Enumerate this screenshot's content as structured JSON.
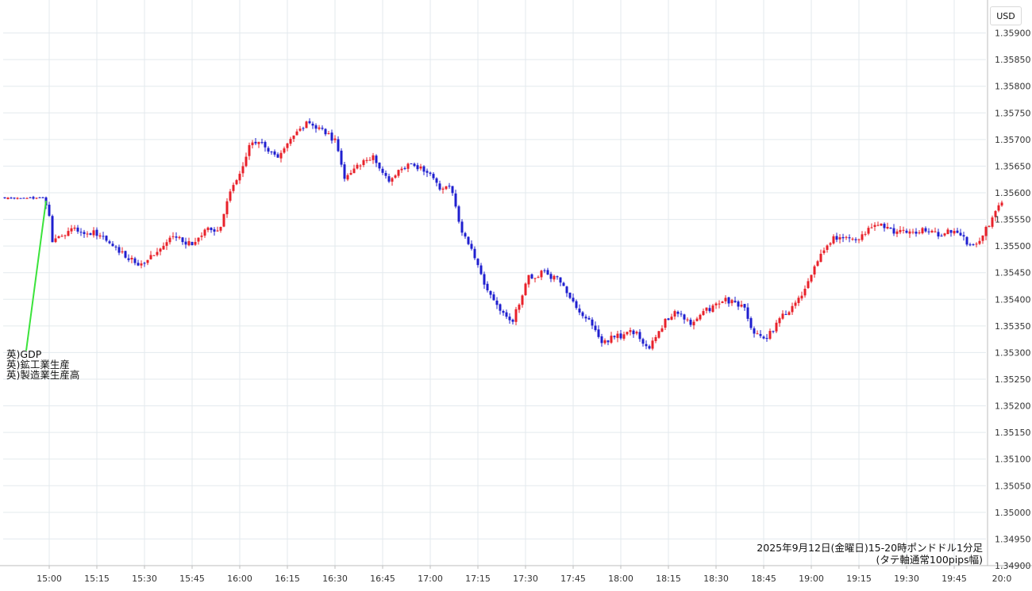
{
  "currency_label": "USD",
  "caption": {
    "line1": "2025年9月12日(金曜日)15-20時ポンドドル1分足",
    "line2": "(タテ軸通常100pips幅)"
  },
  "annotation": {
    "lines": [
      "英)GDP",
      "英)鉱工業生産",
      "英)製造業生産高"
    ],
    "time": "14:59"
  },
  "colors": {
    "up": "#e8212a",
    "down": "#1f1fcf",
    "grid": "#e3eaee",
    "annotation_line": "#3be33b"
  },
  "chart_data": {
    "type": "candlestick",
    "title": "",
    "ylim": [
      1.349,
      1.3595
    ],
    "y_ticks": [
      "1.35900",
      "1.35850",
      "1.35800",
      "1.35750",
      "1.35700",
      "1.35650",
      "1.35600",
      "1.35550",
      "1.35500",
      "1.35450",
      "1.35400",
      "1.35350",
      "1.35300",
      "1.35250",
      "1.35200",
      "1.35150",
      "1.35100",
      "1.35050",
      "1.35000",
      "1.34950",
      "1.34900"
    ],
    "x_range": [
      "14:46",
      "20:00"
    ],
    "x_ticks": [
      "15:00",
      "15:15",
      "15:30",
      "15:45",
      "16:00",
      "16:15",
      "16:30",
      "16:45",
      "17:00",
      "17:15",
      "17:30",
      "17:45",
      "18:00",
      "18:15",
      "18:30",
      "18:45",
      "19:00",
      "19:15",
      "19:30",
      "19:45",
      "20:0"
    ],
    "grid": true,
    "interval_minutes": 1,
    "keypoints": [
      [
        "14:46",
        1.3559
      ],
      [
        "14:58",
        1.3559
      ],
      [
        "15:00",
        1.3556
      ],
      [
        "15:01",
        1.3551
      ],
      [
        "15:04",
        1.3552
      ],
      [
        "15:08",
        1.3553
      ],
      [
        "15:15",
        1.35525
      ],
      [
        "15:22",
        1.3549
      ],
      [
        "15:29",
        1.35465
      ],
      [
        "15:34",
        1.3549
      ],
      [
        "15:39",
        1.35515
      ],
      [
        "15:45",
        1.35505
      ],
      [
        "15:50",
        1.35535
      ],
      [
        "15:54",
        1.3553
      ],
      [
        "15:57",
        1.35605
      ],
      [
        "16:01",
        1.3565
      ],
      [
        "16:03",
        1.35695
      ],
      [
        "16:07",
        1.3569
      ],
      [
        "16:12",
        1.3566
      ],
      [
        "16:17",
        1.3571
      ],
      [
        "16:22",
        1.35735
      ],
      [
        "16:27",
        1.3571
      ],
      [
        "16:30",
        1.357
      ],
      [
        "16:33",
        1.35625
      ],
      [
        "16:37",
        1.3565
      ],
      [
        "16:42",
        1.35665
      ],
      [
        "16:47",
        1.3562
      ],
      [
        "16:51",
        1.3565
      ],
      [
        "16:56",
        1.3565
      ],
      [
        "17:00",
        1.3564
      ],
      [
        "17:03",
        1.35605
      ],
      [
        "17:06",
        1.35615
      ],
      [
        "17:10",
        1.3553
      ],
      [
        "17:14",
        1.3548
      ],
      [
        "17:17",
        1.3543
      ],
      [
        "17:22",
        1.3538
      ],
      [
        "17:26",
        1.3536
      ],
      [
        "17:31",
        1.3544
      ],
      [
        "17:35",
        1.3545
      ],
      [
        "17:40",
        1.3544
      ],
      [
        "17:44",
        1.354
      ],
      [
        "17:50",
        1.3536
      ],
      [
        "17:54",
        1.3532
      ],
      [
        "17:59",
        1.3533
      ],
      [
        "18:04",
        1.3534
      ],
      [
        "18:09",
        1.3531
      ],
      [
        "18:13",
        1.3535
      ],
      [
        "18:17",
        1.3538
      ],
      [
        "18:22",
        1.35355
      ],
      [
        "18:26",
        1.35375
      ],
      [
        "18:33",
        1.354
      ],
      [
        "18:39",
        1.35385
      ],
      [
        "18:42",
        1.3533
      ],
      [
        "18:46",
        1.3533
      ],
      [
        "18:52",
        1.35375
      ],
      [
        "18:56",
        1.354
      ],
      [
        "19:01",
        1.3546
      ],
      [
        "19:06",
        1.3551
      ],
      [
        "19:10",
        1.3552
      ],
      [
        "19:15",
        1.35515
      ],
      [
        "19:20",
        1.35545
      ],
      [
        "19:25",
        1.3553
      ],
      [
        "19:30",
        1.35525
      ],
      [
        "19:35",
        1.3553
      ],
      [
        "19:40",
        1.3552
      ],
      [
        "19:45",
        1.3553
      ],
      [
        "19:50",
        1.355
      ],
      [
        "19:53",
        1.3551
      ],
      [
        "19:57",
        1.3555
      ],
      [
        "20:00",
        1.35585
      ]
    ]
  }
}
